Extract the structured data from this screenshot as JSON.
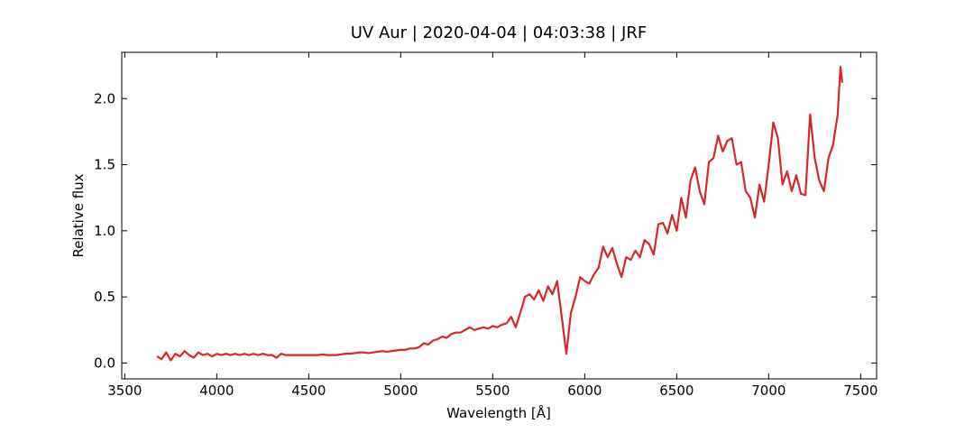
{
  "chart_data": {
    "type": "line",
    "title": "UV Aur | 2020-04-04 | 04:03:38 | JRF",
    "xlabel": "Wavelength [Å]",
    "ylabel": "Relative flux",
    "xlim": [
      3483.5,
      7586.5
    ],
    "ylim": [
      -0.12,
      2.35
    ],
    "xticks": [
      3500,
      4000,
      4500,
      5000,
      5500,
      6000,
      6500,
      7000,
      7500
    ],
    "yticks": [
      {
        "value": 0,
        "label": "0.0"
      },
      {
        "value": 0.5,
        "label": "0.5"
      },
      {
        "value": 1,
        "label": "1.0"
      },
      {
        "value": 1.5,
        "label": "1.5"
      },
      {
        "value": 2,
        "label": "2.0"
      }
    ],
    "series": [
      {
        "name": "UV Aur",
        "color": "#d62728",
        "x": [
          3675,
          3700,
          3725,
          3750,
          3775,
          3800,
          3825,
          3850,
          3875,
          3900,
          3925,
          3950,
          3975,
          4000,
          4025,
          4050,
          4075,
          4100,
          4125,
          4150,
          4175,
          4200,
          4225,
          4250,
          4275,
          4300,
          4325,
          4350,
          4375,
          4400,
          4425,
          4450,
          4475,
          4500,
          4525,
          4550,
          4575,
          4600,
          4625,
          4650,
          4675,
          4700,
          4725,
          4750,
          4775,
          4800,
          4825,
          4850,
          4875,
          4900,
          4925,
          4950,
          4975,
          5000,
          5025,
          5050,
          5075,
          5100,
          5125,
          5150,
          5175,
          5200,
          5225,
          5250,
          5275,
          5300,
          5325,
          5350,
          5375,
          5400,
          5425,
          5450,
          5475,
          5500,
          5525,
          5550,
          5575,
          5600,
          5625,
          5650,
          5675,
          5700,
          5725,
          5750,
          5775,
          5800,
          5825,
          5850,
          5875,
          5900,
          5925,
          5950,
          5975,
          6000,
          6025,
          6050,
          6075,
          6100,
          6125,
          6150,
          6175,
          6200,
          6225,
          6250,
          6275,
          6300,
          6325,
          6350,
          6375,
          6400,
          6425,
          6450,
          6475,
          6500,
          6525,
          6550,
          6575,
          6600,
          6625,
          6650,
          6675,
          6700,
          6725,
          6750,
          6775,
          6800,
          6825,
          6850,
          6875,
          6900,
          6925,
          6950,
          6975,
          7000,
          7025,
          7050,
          7075,
          7100,
          7125,
          7150,
          7175,
          7200,
          7225,
          7250,
          7275,
          7300,
          7325,
          7350,
          7375,
          7390,
          7400
        ],
        "values": [
          0.05,
          0.03,
          0.08,
          0.02,
          0.07,
          0.05,
          0.09,
          0.06,
          0.04,
          0.08,
          0.06,
          0.07,
          0.05,
          0.07,
          0.06,
          0.07,
          0.06,
          0.07,
          0.06,
          0.07,
          0.06,
          0.07,
          0.06,
          0.07,
          0.06,
          0.06,
          0.04,
          0.07,
          0.06,
          0.06,
          0.06,
          0.06,
          0.06,
          0.06,
          0.06,
          0.06,
          0.065,
          0.06,
          0.06,
          0.06,
          0.065,
          0.07,
          0.07,
          0.075,
          0.08,
          0.08,
          0.075,
          0.08,
          0.085,
          0.09,
          0.085,
          0.09,
          0.095,
          0.1,
          0.1,
          0.11,
          0.11,
          0.12,
          0.15,
          0.14,
          0.17,
          0.18,
          0.2,
          0.19,
          0.22,
          0.23,
          0.23,
          0.25,
          0.27,
          0.25,
          0.26,
          0.27,
          0.26,
          0.28,
          0.27,
          0.29,
          0.3,
          0.35,
          0.27,
          0.38,
          0.5,
          0.52,
          0.48,
          0.55,
          0.47,
          0.58,
          0.52,
          0.62,
          0.35,
          0.07,
          0.38,
          0.5,
          0.65,
          0.62,
          0.6,
          0.67,
          0.72,
          0.88,
          0.8,
          0.87,
          0.75,
          0.65,
          0.8,
          0.78,
          0.85,
          0.8,
          0.93,
          0.9,
          0.82,
          1.05,
          1.06,
          0.98,
          1.12,
          1.0,
          1.25,
          1.1,
          1.38,
          1.48,
          1.3,
          1.2,
          1.52,
          1.55,
          1.72,
          1.6,
          1.68,
          1.7,
          1.5,
          1.52,
          1.3,
          1.25,
          1.1,
          1.35,
          1.22,
          1.5,
          1.82,
          1.7,
          1.35,
          1.45,
          1.3,
          1.42,
          1.28,
          1.27,
          1.88,
          1.55,
          1.38,
          1.3,
          1.55,
          1.65,
          1.88,
          2.24,
          2.12
        ]
      }
    ]
  }
}
